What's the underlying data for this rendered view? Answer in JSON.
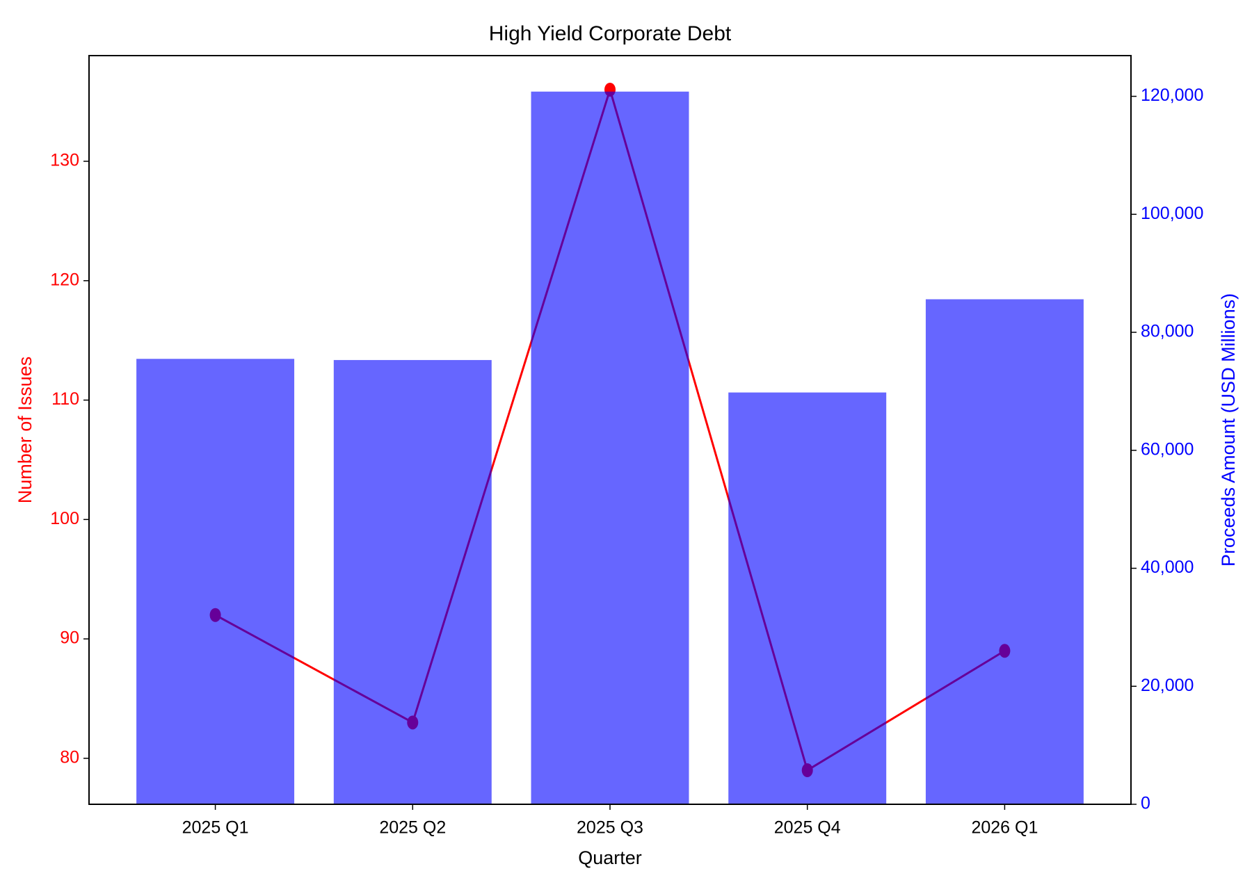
{
  "chart_data": {
    "type": "combo",
    "title": "High Yield Corporate Debt",
    "x_label": "Quarter",
    "y_label": "Number of Issues",
    "y2_label": "Proceeds Amount (USD Millions)",
    "categories": [
      "2025 Q1",
      "2025 Q2",
      "2025 Q3",
      "2025 Q4",
      "2026 Q1"
    ],
    "series": [
      {
        "type": "line",
        "color": "#ff0000",
        "values": [
          92,
          83,
          136,
          79,
          89
        ]
      },
      {
        "type": "bar",
        "axis": "y2",
        "color": "#0000ff",
        "opacity": 0.6,
        "values": [
          75500,
          75300,
          120800,
          69800,
          85600
        ]
      }
    ],
    "ylim": [
      76.15,
      138.85
    ],
    "yticks": [
      80,
      90,
      100,
      110,
      120,
      130
    ],
    "y2lim": [
      0,
      126900
    ],
    "y2ticks": [
      0,
      {
        "value": 20000,
        "label": "20,000"
      },
      {
        "value": 40000,
        "label": "40,000"
      },
      {
        "value": 60000,
        "label": "60,000"
      },
      {
        "value": 80000,
        "label": "80,000"
      },
      {
        "value": 100000,
        "label": "100,000"
      },
      {
        "value": 120000,
        "label": "120,000"
      }
    ],
    "grid": false
  }
}
